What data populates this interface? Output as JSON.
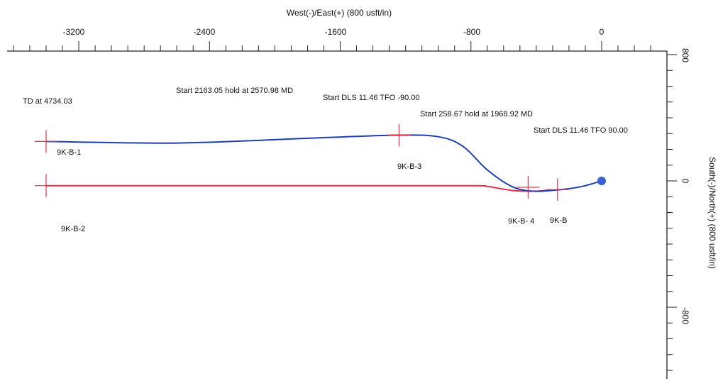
{
  "chart_data": {
    "type": "line",
    "title": "",
    "xlabel": "West(-)/East(+) (800 usft/in)",
    "ylabel": "South(-)/North(+) (800 usft/in)",
    "xlim": [
      -3550,
      400
    ],
    "ylim": [
      -1250,
      800
    ],
    "x_ticks": [
      -3200,
      -2400,
      -1600,
      -800,
      0
    ],
    "x_tick_labels": [
      "-3200",
      "-2400",
      "-1600",
      "-800",
      "0"
    ],
    "y_ticks": [
      800,
      0,
      -800
    ],
    "y_tick_labels": [
      "800",
      "0",
      "-800"
    ],
    "grid": false,
    "series": [
      {
        "color": "#1f3fae",
        "points": [
          [
            0,
            0
          ],
          [
            -120,
            -35
          ],
          [
            -250,
            -55
          ],
          [
            -420,
            -65
          ],
          [
            -550,
            -35
          ],
          [
            -700,
            70
          ],
          [
            -850,
            220
          ],
          [
            -1000,
            280
          ],
          [
            -1250,
            290
          ],
          [
            -1800,
            270
          ],
          [
            -2600,
            240
          ],
          [
            -3400,
            250
          ]
        ]
      },
      {
        "color": "#e03048",
        "points": [
          [
            -250,
            -55
          ],
          [
            -420,
            -65
          ],
          [
            -550,
            -60
          ],
          [
            -700,
            -35
          ],
          [
            -800,
            -30
          ],
          [
            -1600,
            -30
          ],
          [
            -3400,
            -30
          ]
        ]
      }
    ],
    "start_point": {
      "x": 0,
      "y": 0,
      "color": "#3a5fd6"
    },
    "targets": [
      {
        "name": "9K-B-1",
        "x": -3400,
        "y": 250
      },
      {
        "name": "9K-B-2",
        "x": -3400,
        "y": -30
      },
      {
        "name": "9K-B-3",
        "x": -1240,
        "y": 290
      },
      {
        "name": "9K-B- 4",
        "x": -450,
        "y": -40
      },
      {
        "name": "9K-B",
        "x": -270,
        "y": -55
      }
    ],
    "annotations": [
      "TD at 4734.03",
      "Start 2163.05 hold at 2570.98 MD",
      "Start DLS 11.46 TFO -90.00",
      "Start 258.67 hold at 1968.92 MD",
      "Start DLS 11.46 TFO 90.00"
    ]
  },
  "colors": {
    "blue_path": "#1f3fae",
    "red_path": "#e03048",
    "target_cross": "#e03048",
    "axis": "#222222"
  }
}
